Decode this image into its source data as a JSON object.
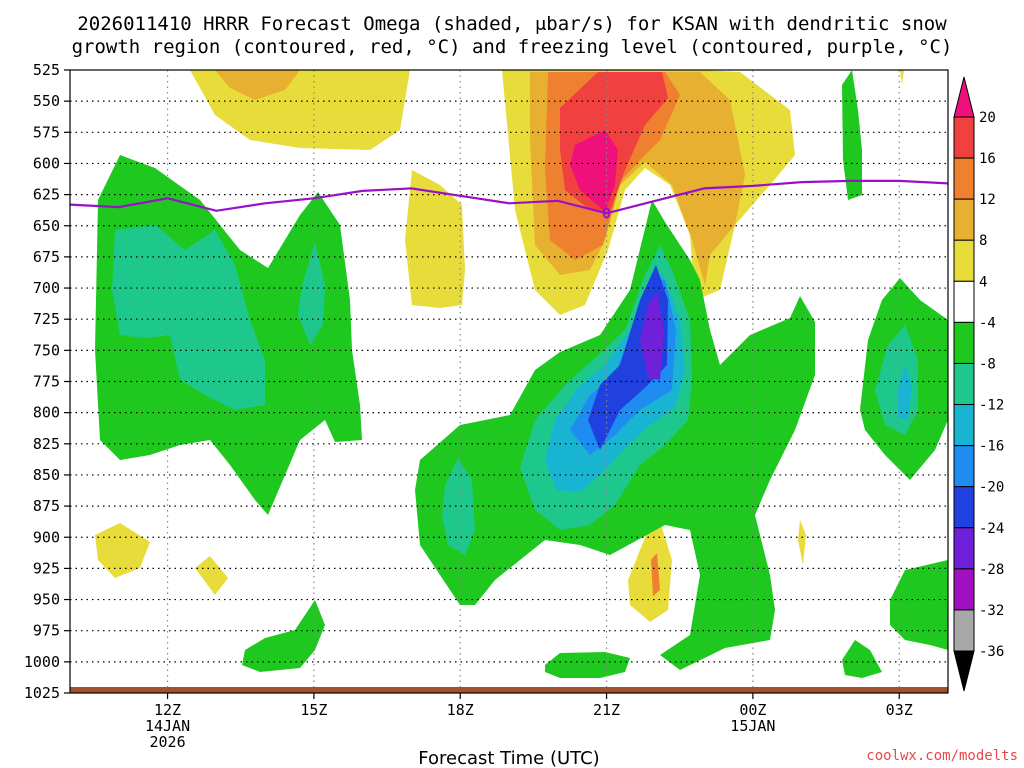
{
  "chart_data": {
    "type": "heatmap",
    "title_lines": [
      "2026011410 HRRR Forecast Omega (shaded, μbar/s) for KSAN with dendritic snow",
      "growth region (contoured, red, °C) and freezing level (contoured, purple, °C)"
    ],
    "xlabel": "Forecast Time (UTC)",
    "credit": "coolwx.com/modelts",
    "x_ticks": [
      {
        "hour": 12,
        "lines": [
          "12Z",
          "14JAN",
          "2026"
        ]
      },
      {
        "hour": 15,
        "lines": [
          "15Z"
        ]
      },
      {
        "hour": 18,
        "lines": [
          "18Z"
        ]
      },
      {
        "hour": 21,
        "lines": [
          "21Z"
        ]
      },
      {
        "hour": 24,
        "lines": [
          "00Z",
          "15JAN"
        ]
      },
      {
        "hour": 27,
        "lines": [
          "03Z"
        ]
      }
    ],
    "x_range_hours": [
      10,
      28
    ],
    "y_ticks_hpa": [
      525,
      550,
      575,
      600,
      625,
      650,
      675,
      700,
      725,
      750,
      775,
      800,
      825,
      850,
      875,
      900,
      925,
      950,
      975,
      1000,
      1025
    ],
    "y_range_hpa": [
      525,
      1025
    ],
    "colorbar": {
      "labels": [
        20,
        16,
        12,
        8,
        4,
        -4,
        -8,
        -12,
        -16,
        -20,
        -24,
        -28,
        -32,
        -36
      ],
      "colors": [
        "#f0107c",
        "#f04040",
        "#ee8030",
        "#e8b030",
        "#e8dc3a",
        "#ffffff",
        "#1ec81e",
        "#1ec88c",
        "#18b4d2",
        "#1e8cf0",
        "#2040e0",
        "#7020d8",
        "#a010c0",
        "#a8a8a8",
        "#000000"
      ]
    },
    "series": [
      {
        "name": "freezing level 0°C (hPa)",
        "color": "#9a10c8",
        "x": [
          10,
          11,
          12,
          13,
          14,
          15,
          16,
          17,
          18,
          19,
          20,
          21,
          22,
          23,
          24,
          25,
          26,
          27,
          28
        ],
        "y": [
          633,
          635,
          628,
          638,
          632,
          628,
          622,
          620,
          626,
          632,
          630,
          640,
          630,
          620,
          618,
          615,
          614,
          614,
          616
        ],
        "label": "0"
      }
    ],
    "terrain_color": "#a0522d"
  }
}
